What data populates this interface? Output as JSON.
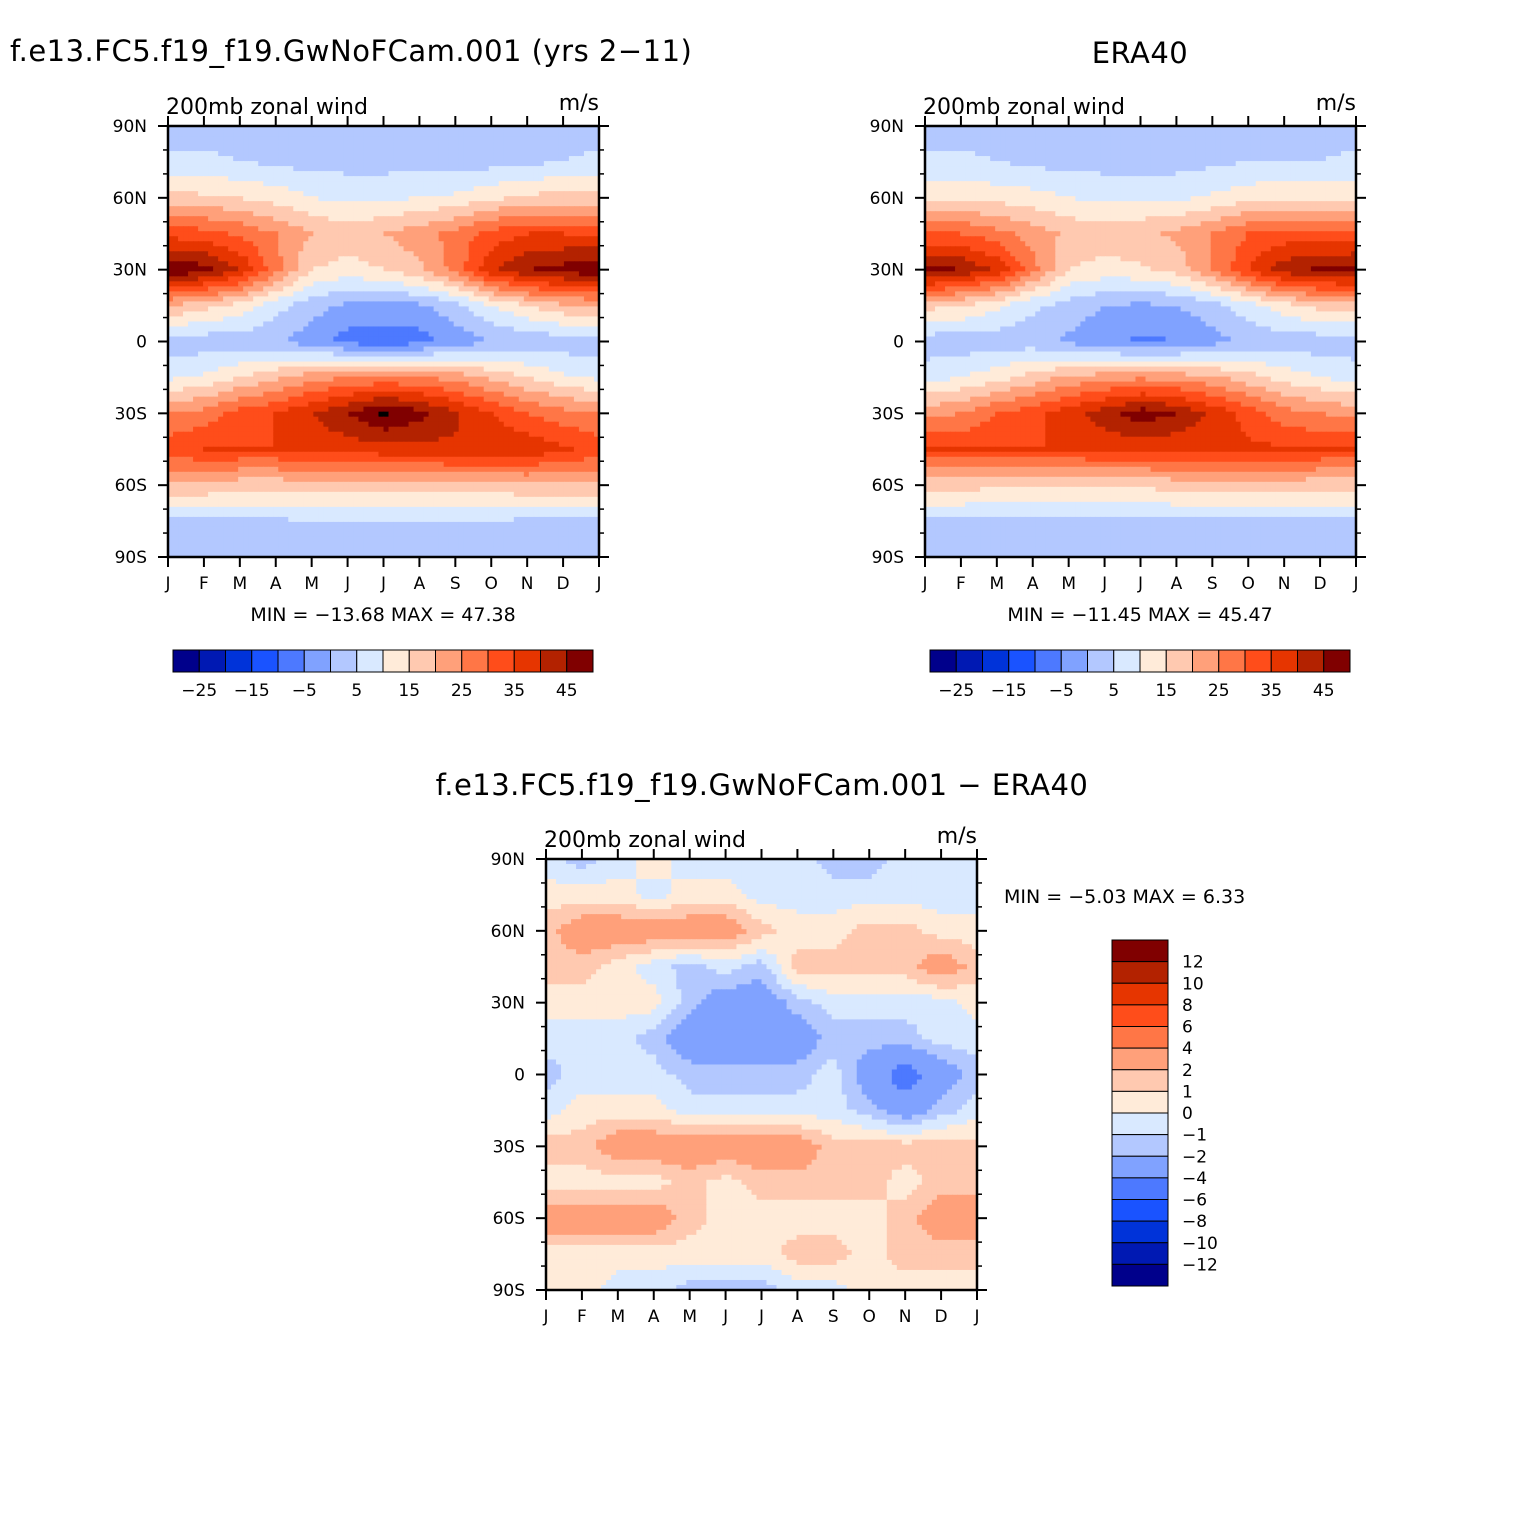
{
  "months": [
    "J",
    "F",
    "M",
    "A",
    "M",
    "J",
    "J",
    "A",
    "S",
    "O",
    "N",
    "D",
    "J"
  ],
  "lat_labels": [
    "90N",
    "60N",
    "30N",
    "0",
    "30S",
    "60S",
    "90S"
  ],
  "panels": {
    "model": {
      "title": "f.e13.FC5.f19_f19.GwNoFCam.001 (yrs 2−11)",
      "left_label": "200mb zonal wind",
      "right_label": "m/s",
      "min_max": "MIN = −13.68 MAX =   47.38"
    },
    "obs": {
      "title": "ERA40",
      "left_label": "200mb zonal wind",
      "right_label": "m/s",
      "min_max": "MIN = −11.45 MAX =   45.47"
    },
    "diff": {
      "title": "f.e13.FC5.f19_f19.GwNoFCam.001 − ERA40",
      "left_label": "200mb zonal wind",
      "right_label": "m/s",
      "min_max": "MIN =   −5.03 MAX =    6.33"
    }
  },
  "colorbar_full": {
    "labels": [
      "−25",
      "−15",
      "−5",
      "5",
      "15",
      "25",
      "35",
      "45"
    ],
    "colors": [
      "#00008b",
      "#0019b3",
      "#0033d9",
      "#1a53ff",
      "#4d79ff",
      "#80a2ff",
      "#b3c8ff",
      "#d9e9ff",
      "#ffebd9",
      "#ffc9b0",
      "#ffa07a",
      "#ff7646",
      "#ff4d1a",
      "#e63500",
      "#b32200",
      "#800000"
    ]
  },
  "colorbar_diff": {
    "labels": [
      "12",
      "10",
      "8",
      "6",
      "4",
      "2",
      "1",
      "0",
      "−1",
      "−2",
      "−4",
      "−6",
      "−8",
      "−10",
      "−12"
    ],
    "colors": [
      "#800000",
      "#b32200",
      "#e63500",
      "#ff4d1a",
      "#ff7646",
      "#ffa07a",
      "#ffc9b0",
      "#ffebd9",
      "#d9e9ff",
      "#b3c8ff",
      "#80a2ff",
      "#4d79ff",
      "#1a53ff",
      "#0033d9",
      "#0019b3",
      "#00008b"
    ]
  },
  "chart_data": [
    {
      "type": "heatmap",
      "title": "f.e13.FC5.f19_f19.GwNoFCam.001 (yrs 2−11)",
      "field": "200mb zonal wind",
      "units": "m/s",
      "x": [
        "J",
        "F",
        "M",
        "A",
        "M",
        "J",
        "J",
        "A",
        "S",
        "O",
        "N",
        "D",
        "J"
      ],
      "y": [
        90,
        75,
        60,
        45,
        30,
        15,
        0,
        -15,
        -30,
        -45,
        -60,
        -75,
        -90
      ],
      "values": [
        [
          -2,
          -2,
          -2,
          -2,
          -2,
          -2,
          -2,
          -2,
          -2,
          -2,
          -2,
          -2,
          -2
        ],
        [
          1,
          1,
          0,
          -1,
          -2,
          -2,
          -2,
          -2,
          -2,
          -2,
          -1,
          0,
          1
        ],
        [
          12,
          11,
          10,
          8,
          5,
          4,
          4,
          5,
          6,
          9,
          11,
          12,
          12
        ],
        [
          28,
          27,
          24,
          20,
          15,
          13,
          15,
          18,
          22,
          27,
          30,
          30,
          28
        ],
        [
          45,
          42,
          35,
          22,
          10,
          8,
          10,
          14,
          22,
          34,
          40,
          42,
          45
        ],
        [
          15,
          12,
          8,
          2,
          -3,
          -6,
          -7,
          -6,
          -2,
          5,
          10,
          14,
          15
        ],
        [
          -3,
          -3,
          -3,
          -4,
          -8,
          -12,
          -13,
          -12,
          -8,
          -5,
          -4,
          -3,
          -3
        ],
        [
          4,
          6,
          10,
          14,
          18,
          20,
          21,
          20,
          18,
          14,
          10,
          6,
          4
        ],
        [
          20,
          22,
          27,
          30,
          35,
          40,
          46,
          42,
          36,
          30,
          25,
          22,
          20
        ],
        [
          28,
          30,
          30,
          30,
          32,
          32,
          33,
          33,
          34,
          34,
          34,
          31,
          28
        ],
        [
          14,
          14,
          12,
          12,
          12,
          12,
          12,
          13,
          13,
          13,
          14,
          14,
          14
        ],
        [
          -1,
          -1,
          -1,
          -1,
          0,
          0,
          0,
          0,
          0,
          0,
          -1,
          -1,
          -1
        ],
        [
          -3,
          -3,
          -3,
          -3,
          -3,
          -3,
          -3,
          -3,
          -3,
          -3,
          -3,
          -3,
          -3
        ]
      ],
      "min": -13.68,
      "max": 47.38,
      "levels": [
        -30,
        -25,
        -20,
        -15,
        -10,
        -5,
        0,
        5,
        10,
        15,
        20,
        25,
        30,
        35,
        40,
        45
      ]
    },
    {
      "type": "heatmap",
      "title": "ERA40",
      "field": "200mb zonal wind",
      "units": "m/s",
      "x": [
        "J",
        "F",
        "M",
        "A",
        "M",
        "J",
        "J",
        "A",
        "S",
        "O",
        "N",
        "D",
        "J"
      ],
      "y": [
        90,
        75,
        60,
        45,
        30,
        15,
        0,
        -15,
        -30,
        -45,
        -60,
        -75,
        -90
      ],
      "values": [
        [
          -2,
          -2,
          -2,
          -2,
          -2,
          -2,
          -2,
          -2,
          -2,
          -2,
          -2,
          -2,
          -2
        ],
        [
          1,
          1,
          0,
          -1,
          -2,
          -2,
          -2,
          -2,
          -1,
          0,
          0,
          0,
          1
        ],
        [
          9,
          9,
          8,
          7,
          5,
          4,
          4,
          4,
          6,
          8,
          9,
          9,
          9
        ],
        [
          25,
          25,
          22,
          18,
          14,
          13,
          14,
          16,
          20,
          25,
          27,
          27,
          25
        ],
        [
          43,
          40,
          34,
          22,
          10,
          8,
          9,
          12,
          20,
          30,
          38,
          41,
          43
        ],
        [
          12,
          10,
          6,
          1,
          -2,
          -5,
          -6,
          -5,
          -2,
          3,
          8,
          12,
          12
        ],
        [
          -3,
          -3,
          -3,
          -3,
          -6,
          -9,
          -11,
          -10,
          -7,
          -4,
          -3,
          -3,
          -3
        ],
        [
          3,
          5,
          8,
          12,
          16,
          18,
          19,
          18,
          16,
          12,
          8,
          5,
          3
        ],
        [
          18,
          20,
          25,
          28,
          33,
          38,
          43,
          40,
          34,
          28,
          22,
          20,
          18
        ],
        [
          30,
          30,
          30,
          30,
          30,
          31,
          31,
          31,
          31,
          31,
          31,
          30,
          30
        ],
        [
          12,
          12,
          11,
          11,
          11,
          11,
          11,
          12,
          12,
          12,
          12,
          12,
          12
        ],
        [
          -1,
          -1,
          -1,
          -1,
          -1,
          -1,
          -1,
          -1,
          -1,
          -1,
          -1,
          -1,
          -1
        ],
        [
          -3,
          -3,
          -3,
          -3,
          -3,
          -3,
          -3,
          -3,
          -3,
          -3,
          -3,
          -3,
          -3
        ]
      ],
      "min": -11.45,
      "max": 45.47,
      "levels": [
        -30,
        -25,
        -20,
        -15,
        -10,
        -5,
        0,
        5,
        10,
        15,
        20,
        25,
        30,
        35,
        40,
        45
      ]
    },
    {
      "type": "heatmap",
      "title": "f.e13.FC5.f19_f19.GwNoFCam.001 − ERA40",
      "field": "200mb zonal wind",
      "units": "m/s",
      "x": [
        "J",
        "F",
        "M",
        "A",
        "M",
        "J",
        "J",
        "A",
        "S",
        "O",
        "N",
        "D",
        "J"
      ],
      "y": [
        90,
        75,
        60,
        45,
        30,
        15,
        0,
        -15,
        -30,
        -45,
        -60,
        -75,
        -90
      ],
      "values": [
        [
          -0.5,
          -1.5,
          -0.5,
          0.5,
          -0.5,
          -0.5,
          -0.5,
          -0.5,
          -1.5,
          -1.5,
          -0.5,
          -0.5,
          -0.5
        ],
        [
          0.5,
          0.5,
          0.5,
          -0.5,
          0.5,
          0.5,
          -0.5,
          -0.5,
          -0.5,
          -0.5,
          -0.5,
          -0.5,
          -0.5
        ],
        [
          1.5,
          3,
          3,
          3,
          3,
          3,
          1.5,
          0.5,
          0.5,
          1.5,
          1.5,
          0.5,
          0.5
        ],
        [
          1.5,
          1.5,
          0.5,
          -0.5,
          -1.5,
          -0.5,
          -1.5,
          1.5,
          1.5,
          1.5,
          1.5,
          3,
          1.5
        ],
        [
          0.5,
          0.5,
          0.5,
          0.5,
          -1.5,
          -3,
          -3,
          -1.5,
          -0.5,
          -0.5,
          -0.5,
          -0.5,
          0.5
        ],
        [
          -0.5,
          -0.5,
          -0.5,
          -1.5,
          -3,
          -3,
          -3,
          -3,
          -1.5,
          -1.5,
          -1.5,
          -0.5,
          -0.5
        ],
        [
          -1.5,
          -0.5,
          -0.5,
          -0.5,
          -1.5,
          -1.5,
          -1.5,
          -1.5,
          -0.5,
          -3,
          -5,
          -3,
          -1.5
        ],
        [
          -0.5,
          0.5,
          0.5,
          0.5,
          -0.5,
          -0.5,
          -0.5,
          -0.5,
          -0.5,
          -1.5,
          -3,
          -1.5,
          -0.5
        ],
        [
          1.5,
          1.5,
          3,
          3,
          3,
          3,
          3,
          3,
          1.5,
          1.5,
          1.5,
          1.5,
          1.5
        ],
        [
          0.5,
          0.5,
          0.5,
          0.5,
          1.5,
          0.5,
          1.5,
          1.5,
          1.5,
          1.5,
          0.5,
          1.5,
          1.5
        ],
        [
          3,
          3,
          3,
          3,
          1.5,
          0.5,
          0.5,
          0.5,
          0.5,
          0.5,
          1.5,
          3,
          3
        ],
        [
          0.5,
          0.5,
          0.5,
          0.5,
          0.5,
          0.5,
          0.5,
          1.5,
          1.5,
          0.5,
          1.5,
          1.5,
          1.5
        ],
        [
          0.5,
          0.5,
          -0.5,
          -0.5,
          -1.5,
          -1.5,
          -1.5,
          -0.5,
          -0.5,
          0.5,
          0.5,
          0.5,
          0.5
        ]
      ],
      "min": -5.03,
      "max": 6.33,
      "levels": [
        -12,
        -10,
        -8,
        -6,
        -4,
        -2,
        -1,
        0,
        1,
        2,
        4,
        6,
        8,
        10,
        12
      ]
    }
  ]
}
